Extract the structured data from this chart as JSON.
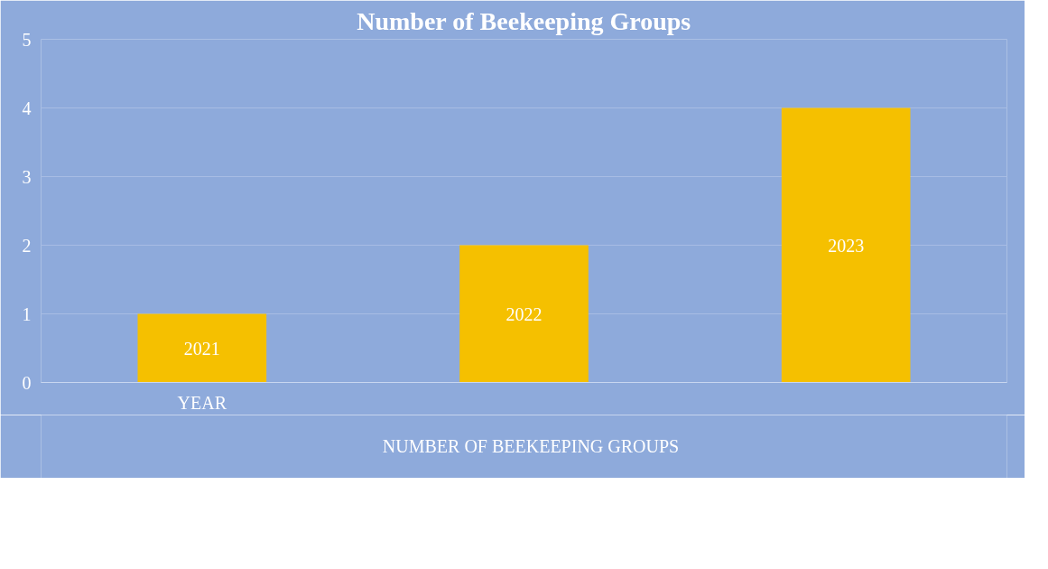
{
  "chart_data": {
    "type": "bar",
    "title": "Number of Beekeeping Groups",
    "categories": [
      "YEAR",
      null,
      null
    ],
    "series": [
      {
        "name": "NUMBER OF BEEKEEPING GROUPS",
        "color": "#f5c000",
        "values": [
          1,
          2,
          4
        ]
      }
    ],
    "annotations": [
      "2021",
      "2022",
      "2023"
    ],
    "ylim": [
      0,
      5
    ],
    "yticks": [
      0,
      1,
      2,
      3,
      4,
      5
    ],
    "grid": "y",
    "legend": "bottom"
  }
}
